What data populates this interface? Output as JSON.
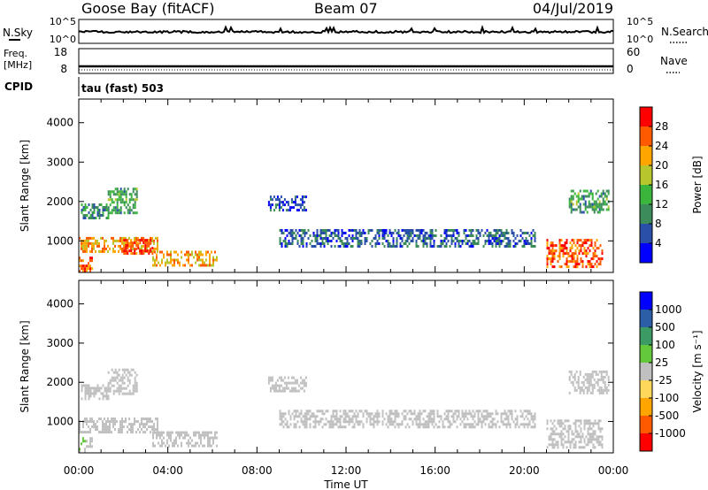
{
  "header": {
    "station": "Goose Bay (fitACF)",
    "beam": "Beam 07",
    "date": "04/Jul/2019"
  },
  "noise_panel": {
    "left_label": "N.Sky",
    "left_ticks": [
      "10^5",
      "10^0"
    ],
    "right_label": "N.Search",
    "right_ticks": [
      "10^5",
      "10^0"
    ]
  },
  "freq_panel": {
    "left_label_1": "Freq.",
    "left_label_2": "[MHz]",
    "left_ticks": [
      "18",
      "8"
    ],
    "right_label": "Nave",
    "right_ticks": [
      "60",
      "0"
    ]
  },
  "cpid": {
    "label": "CPID",
    "mode": "tau (fast) 503"
  },
  "colors": {
    "power_scale": [
      "#0000ff",
      "#2a4fa8",
      "#3b8c5a",
      "#3cb53c",
      "#b8c62e",
      "#ffa500",
      "#ff5a00",
      "#ff0000"
    ],
    "velocity_scale": [
      "#ff0000",
      "#ff5a00",
      "#ffa500",
      "#ffd75a",
      "#c0c0c0",
      "#64c83c",
      "#3c9a64",
      "#2a5fa8",
      "#0000ff"
    ]
  },
  "chart_data": [
    {
      "type": "heatmap",
      "name": "power",
      "ylabel": "Slant Range [km]",
      "yticks": [
        "1000",
        "2000",
        "3000",
        "4000"
      ],
      "ylim": [
        200,
        4600
      ],
      "xlim": [
        0,
        24
      ],
      "colorbar_label": "Power [dB]",
      "colorbar_ticks": [
        "4",
        "8",
        "12",
        "16",
        "20",
        "24",
        "28"
      ],
      "colorbar_range": [
        0,
        32
      ],
      "patches": [
        {
          "t0": 0.1,
          "t1": 1.3,
          "r0": 1550,
          "r1": 1950,
          "value": 10
        },
        {
          "t0": 1.3,
          "t1": 2.6,
          "r0": 1700,
          "r1": 2350,
          "value": 12
        },
        {
          "t0": 0.0,
          "t1": 3.5,
          "r0": 700,
          "r1": 1100,
          "value": 22
        },
        {
          "t0": 2.0,
          "t1": 3.3,
          "r0": 700,
          "r1": 1050,
          "value": 28
        },
        {
          "t0": 3.3,
          "t1": 6.2,
          "r0": 400,
          "r1": 750,
          "value": 22
        },
        {
          "t0": 0.0,
          "t1": 0.6,
          "r0": 250,
          "r1": 600,
          "value": 26
        },
        {
          "t0": 8.5,
          "t1": 10.2,
          "r0": 1750,
          "r1": 2150,
          "value": 6
        },
        {
          "t0": 9.0,
          "t1": 20.5,
          "r0": 850,
          "r1": 1300,
          "value": 7
        },
        {
          "t0": 21.0,
          "t1": 23.5,
          "r0": 350,
          "r1": 1050,
          "value": 26
        },
        {
          "t0": 22.0,
          "t1": 23.8,
          "r0": 1700,
          "r1": 2300,
          "value": 12
        }
      ]
    },
    {
      "type": "heatmap",
      "name": "velocity",
      "ylabel": "Slant Range [km]",
      "yticks": [
        "1000",
        "2000",
        "3000",
        "4000"
      ],
      "ylim": [
        200,
        4600
      ],
      "xlabel": "Time UT",
      "xticks": [
        "00:00",
        "04:00",
        "08:00",
        "12:00",
        "16:00",
        "20:00",
        "00:00"
      ],
      "xlim": [
        0,
        24
      ],
      "colorbar_label": "Velocity [m s⁻¹]",
      "colorbar_ticks": [
        "-1000",
        "-500",
        "-100",
        "-25",
        "25",
        "100",
        "500",
        "1000"
      ],
      "colorbar_range": [
        -1500,
        1500
      ],
      "patches": [
        {
          "t0": 0.1,
          "t1": 1.3,
          "r0": 1550,
          "r1": 1950,
          "value": 0
        },
        {
          "t0": 1.3,
          "t1": 2.6,
          "r0": 1700,
          "r1": 2350,
          "value": 0
        },
        {
          "t0": 0.0,
          "t1": 3.5,
          "r0": 700,
          "r1": 1100,
          "value": 0
        },
        {
          "t0": 3.3,
          "t1": 6.2,
          "r0": 400,
          "r1": 750,
          "value": 0
        },
        {
          "t0": 0.0,
          "t1": 0.6,
          "r0": 250,
          "r1": 600,
          "value": 150
        },
        {
          "t0": 8.5,
          "t1": 10.2,
          "r0": 1750,
          "r1": 2150,
          "value": 0
        },
        {
          "t0": 9.0,
          "t1": 20.5,
          "r0": 850,
          "r1": 1300,
          "value": 0
        },
        {
          "t0": 21.0,
          "t1": 23.5,
          "r0": 350,
          "r1": 1050,
          "value": 0
        },
        {
          "t0": 22.0,
          "t1": 23.8,
          "r0": 1700,
          "r1": 2300,
          "value": 0
        }
      ]
    }
  ]
}
